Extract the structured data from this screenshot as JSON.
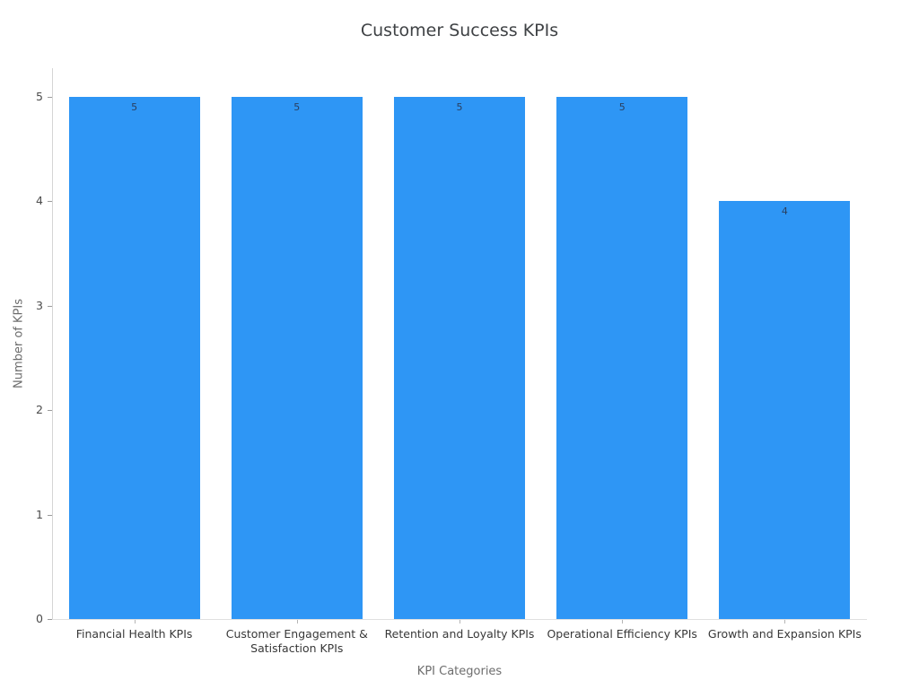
{
  "chart_data": {
    "type": "bar",
    "title": "Customer Success KPIs",
    "xlabel": "KPI Categories",
    "ylabel": "Number of KPIs",
    "categories": [
      "Financial Health KPIs",
      "Customer Engagement & Satisfaction KPIs",
      "Retention and Loyalty KPIs",
      "Operational Efficiency KPIs",
      "Growth and Expansion KPIs"
    ],
    "values": [
      5,
      5,
      5,
      5,
      4
    ],
    "ylim": [
      0,
      5
    ],
    "yticks": [
      0,
      1,
      2,
      3,
      4,
      5
    ],
    "grid": false,
    "legend": "none",
    "colors": {
      "bar_fill": "#2e96f5",
      "value_label": "#2a3f5f",
      "title_text": "#3f4245",
      "axis_title_text": "#6d6d6d",
      "tick_label_text": "#4b4b4b"
    }
  }
}
